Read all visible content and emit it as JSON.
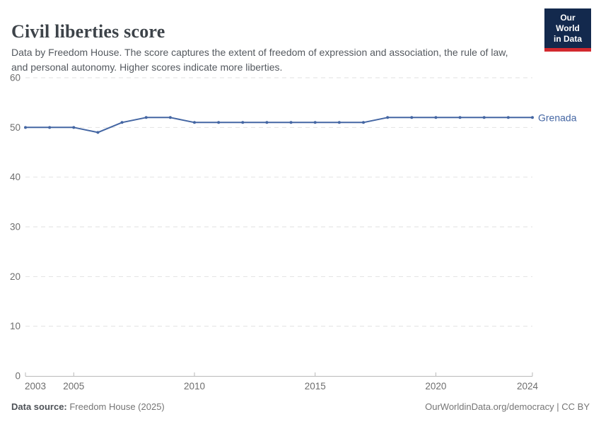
{
  "header": {
    "title": "Civil liberties score",
    "subtitle": "Data by Freedom House. The score captures the extent of freedom of expression and association, the rule of law, and personal autonomy. Higher scores indicate more liberties.",
    "logo": {
      "line1": "Our World",
      "line2": "in Data"
    }
  },
  "footer": {
    "source_label": "Data source:",
    "source_value": " Freedom House (2025)",
    "credit": "OurWorldinData.org/democracy | CC BY"
  },
  "colors": {
    "line": "#4466a3",
    "grid": "#e2e2e2",
    "axis": "#b9b9b9",
    "tick_label": "#6e6e6e",
    "series_label": "#4466a3",
    "logo_bg": "#13294d",
    "logo_red": "#d2282e"
  },
  "chart_data": {
    "type": "line",
    "title": "Civil liberties score",
    "xlabel": "",
    "ylabel": "",
    "x": [
      2003,
      2004,
      2005,
      2006,
      2007,
      2008,
      2009,
      2010,
      2011,
      2012,
      2013,
      2014,
      2015,
      2016,
      2017,
      2018,
      2019,
      2020,
      2021,
      2022,
      2023,
      2024
    ],
    "series": [
      {
        "name": "Grenada",
        "values": [
          50,
          50,
          50,
          49,
          51,
          52,
          52,
          51,
          51,
          51,
          51,
          51,
          51,
          51,
          51,
          52,
          52,
          52,
          52,
          52,
          52,
          52
        ]
      }
    ],
    "x_ticks": [
      2003,
      2005,
      2010,
      2015,
      2020,
      2024
    ],
    "y_ticks": [
      0,
      10,
      20,
      30,
      40,
      50,
      60
    ],
    "xlim": [
      2003,
      2024
    ],
    "ylim": [
      0,
      60
    ],
    "grid": "horizontal-dashed",
    "legend": "end-of-line-label"
  }
}
